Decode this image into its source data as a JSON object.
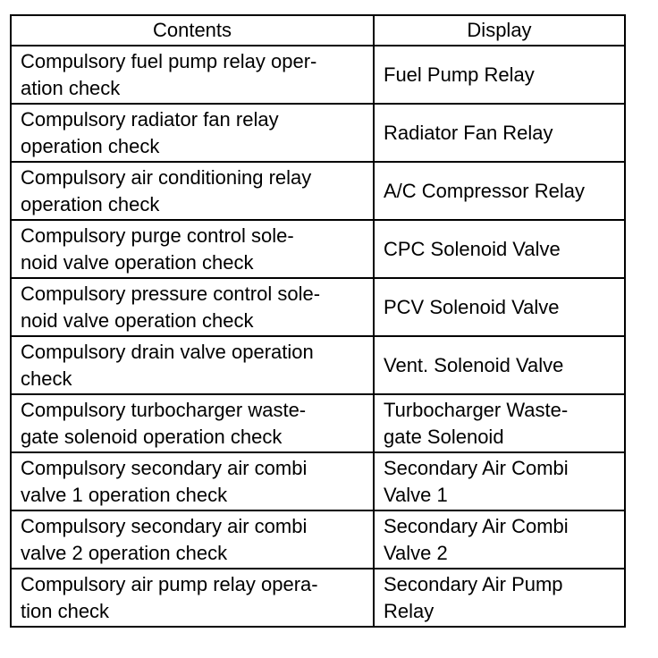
{
  "table": {
    "headers": [
      "Contents",
      "Display"
    ],
    "rows": [
      {
        "contents": "Compulsory fuel pump relay oper-\nation check",
        "display": "Fuel Pump Relay"
      },
      {
        "contents": "Compulsory radiator fan relay\noperation check",
        "display": "Radiator Fan Relay"
      },
      {
        "contents": "Compulsory air conditioning relay\noperation check",
        "display": "A/C Compressor Relay"
      },
      {
        "contents": "Compulsory purge control sole-\nnoid valve operation check",
        "display": "CPC Solenoid Valve"
      },
      {
        "contents": "Compulsory pressure control sole-\nnoid valve operation check",
        "display": "PCV Solenoid Valve"
      },
      {
        "contents": "Compulsory drain valve operation\ncheck",
        "display": "Vent. Solenoid Valve"
      },
      {
        "contents": "Compulsory turbocharger waste-\ngate solenoid operation check",
        "display": "Turbocharger Waste-\ngate Solenoid"
      },
      {
        "contents": "Compulsory secondary air combi\nvalve 1 operation check",
        "display": "Secondary Air Combi\nValve 1"
      },
      {
        "contents": "Compulsory secondary air combi\nvalve 2 operation check",
        "display": "Secondary Air Combi\nValve 2"
      },
      {
        "contents": "Compulsory air pump relay opera-\ntion check",
        "display": "Secondary Air Pump\nRelay"
      }
    ]
  }
}
